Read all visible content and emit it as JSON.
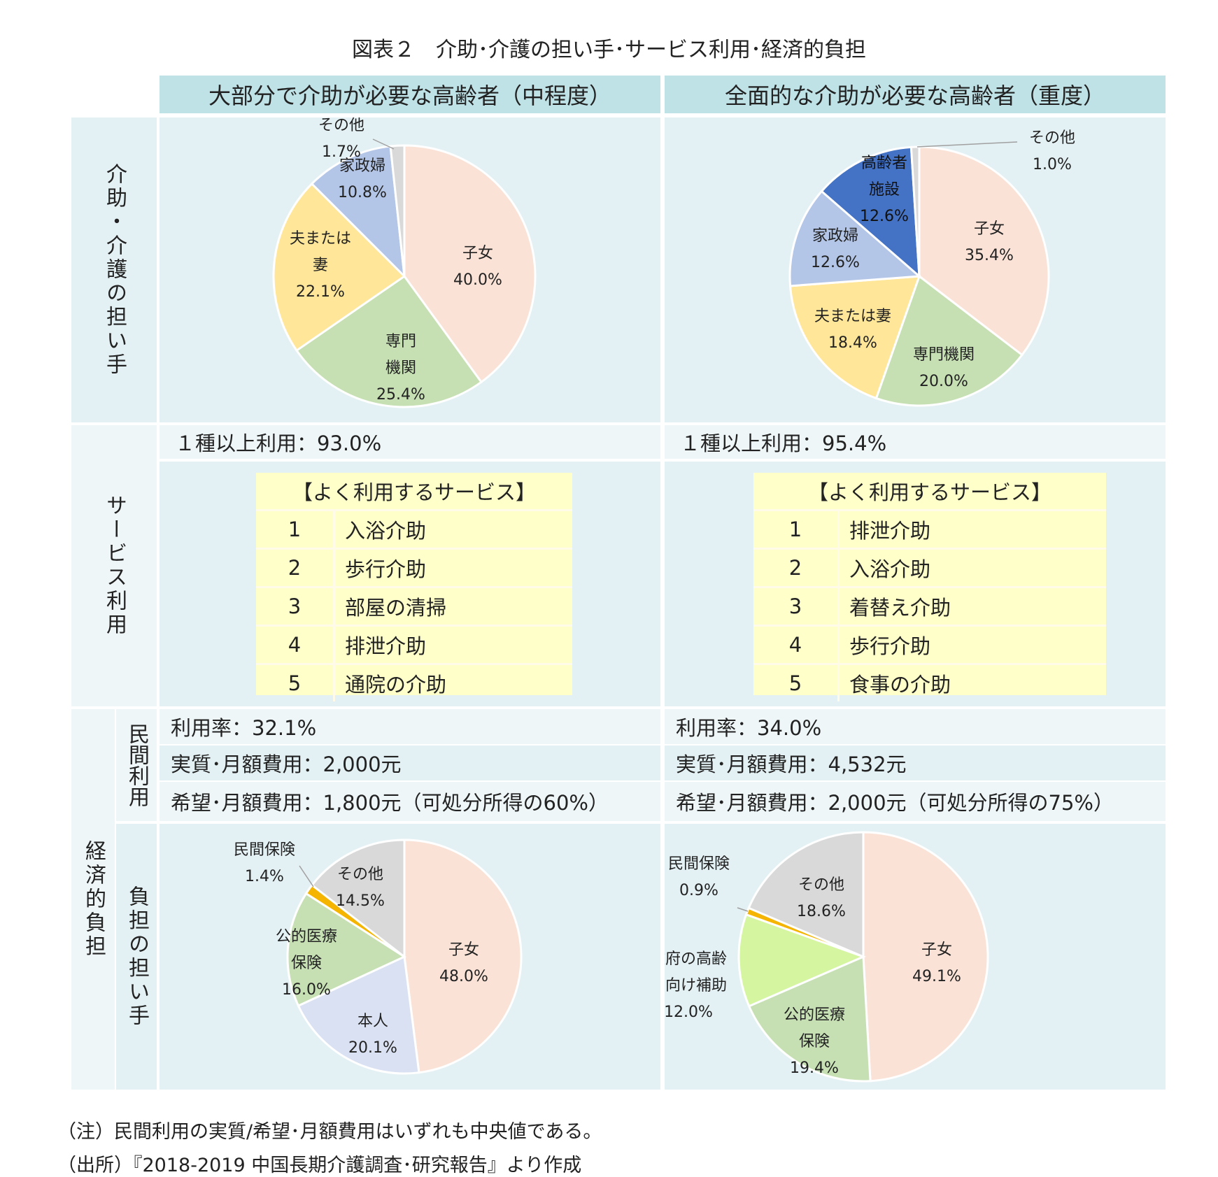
{
  "title": "図表２　介助･介護の担い手･サービス利用･経済的負担",
  "columns": [
    "大部分で介助が必要な高齢者（中程度）",
    "全面的な介助が必要な高齢者（重度）"
  ],
  "rows": {
    "carers": "介助・介護の担い手",
    "service": "サービス利用",
    "economic": "経済的負担",
    "private_use": "民間利用",
    "burden": "負担の担い手"
  },
  "service_use": {
    "moderate_rate": "１種以上利用：93.0%",
    "severe_rate": "１種以上利用：95.4%",
    "header": "【よく利用するサービス】",
    "moderate_top": [
      {
        "rank": "1",
        "name": "入浴介助"
      },
      {
        "rank": "2",
        "name": "歩行介助"
      },
      {
        "rank": "3",
        "name": "部屋の清掃"
      },
      {
        "rank": "4",
        "name": "排泄介助"
      },
      {
        "rank": "5",
        "name": "通院の介助"
      }
    ],
    "severe_top": [
      {
        "rank": "1",
        "name": "排泄介助"
      },
      {
        "rank": "2",
        "name": "入浴介助"
      },
      {
        "rank": "3",
        "name": "着替え介助"
      },
      {
        "rank": "4",
        "name": "歩行介助"
      },
      {
        "rank": "5",
        "name": "食事の介助"
      }
    ]
  },
  "private": {
    "moderate": [
      "利用率：32.1%",
      "実質･月額費用：2,000元",
      "希望･月額費用：1,800元（可処分所得の60%）"
    ],
    "severe": [
      "利用率：34.0%",
      "実質･月額費用：4,532元",
      "希望･月額費用：2,000元（可処分所得の75%）"
    ]
  },
  "notes": [
    "（注）民間利用の実質/希望･月額費用はいずれも中央値である。",
    "（出所）『2018-2019 中国長期介護調査･研究報告』より作成"
  ],
  "chart_data": [
    {
      "type": "pie",
      "slices": [
        {
          "label": "子女",
          "value": 40.0,
          "color": "#fae2d6"
        },
        {
          "label": "専門機関",
          "value": 25.4,
          "color": "#c6e0b4"
        },
        {
          "label": "夫または妻",
          "value": 22.1,
          "color": "#ffe699"
        },
        {
          "label": "家政婦",
          "value": 10.8,
          "color": "#b4c6e7"
        },
        {
          "label": "その他",
          "value": 1.7,
          "color": "#d9d9d9"
        }
      ],
      "labels_text": [
        [
          "子女",
          "40.0%"
        ],
        [
          "専門",
          "機関",
          "25.4%"
        ],
        [
          "夫または",
          "妻",
          "22.1%"
        ],
        [
          "家政婦",
          "10.8%"
        ],
        [
          "その他",
          "1.7%"
        ]
      ]
    },
    {
      "type": "pie",
      "slices": [
        {
          "label": "子女",
          "value": 35.4,
          "color": "#fae2d6"
        },
        {
          "label": "専門機関",
          "value": 20.0,
          "color": "#c6e0b4"
        },
        {
          "label": "夫または妻",
          "value": 18.4,
          "color": "#ffe699"
        },
        {
          "label": "家政婦",
          "value": 12.6,
          "color": "#b4c6e7"
        },
        {
          "label": "高齢者施設",
          "value": 12.6,
          "color": "#4472c4"
        },
        {
          "label": "その他",
          "value": 1.0,
          "color": "#d9d9d9"
        }
      ],
      "labels_text": [
        [
          "子女",
          "35.4%"
        ],
        [
          "専門機関",
          "20.0%"
        ],
        [
          "夫または妻",
          "18.4%"
        ],
        [
          "家政婦",
          "12.6%"
        ],
        [
          "高齢者",
          "施設",
          "12.6%"
        ],
        [
          "その他",
          "1.0%"
        ]
      ]
    },
    {
      "type": "pie",
      "slices": [
        {
          "label": "子女",
          "value": 48.0,
          "color": "#fae2d6"
        },
        {
          "label": "本人",
          "value": 20.1,
          "color": "#d9e1f2"
        },
        {
          "label": "公的医療保険",
          "value": 16.0,
          "color": "#c6e0b4"
        },
        {
          "label": "民間保険",
          "value": 1.4,
          "color": "#f4b400"
        },
        {
          "label": "その他",
          "value": 14.5,
          "color": "#d9d9d9"
        }
      ],
      "labels_text": [
        [
          "子女",
          "48.0%"
        ],
        [
          "本人",
          "20.1%"
        ],
        [
          "公的医療",
          "保険",
          "16.0%"
        ],
        [
          "民間保険",
          "1.4%"
        ],
        [
          "その他",
          "14.5%"
        ]
      ]
    },
    {
      "type": "pie",
      "slices": [
        {
          "label": "子女",
          "value": 49.1,
          "color": "#fae2d6"
        },
        {
          "label": "公的医療保険",
          "value": 19.4,
          "color": "#c6e0b4"
        },
        {
          "label": "政府の高齢者向け補助",
          "value": 12.0,
          "color": "#d5f5a0"
        },
        {
          "label": "民間保険",
          "value": 0.9,
          "color": "#f4b400"
        },
        {
          "label": "その他",
          "value": 18.6,
          "color": "#d9d9d9"
        }
      ],
      "labels_text": [
        [
          "子女",
          "49.1%"
        ],
        [
          "公的医療",
          "保険",
          "19.4%"
        ],
        [
          "政府の高齢",
          "者向け補助",
          "12.0%"
        ],
        [
          "民間保険",
          "0.9%"
        ],
        [
          "その他",
          "18.6%"
        ]
      ]
    }
  ]
}
